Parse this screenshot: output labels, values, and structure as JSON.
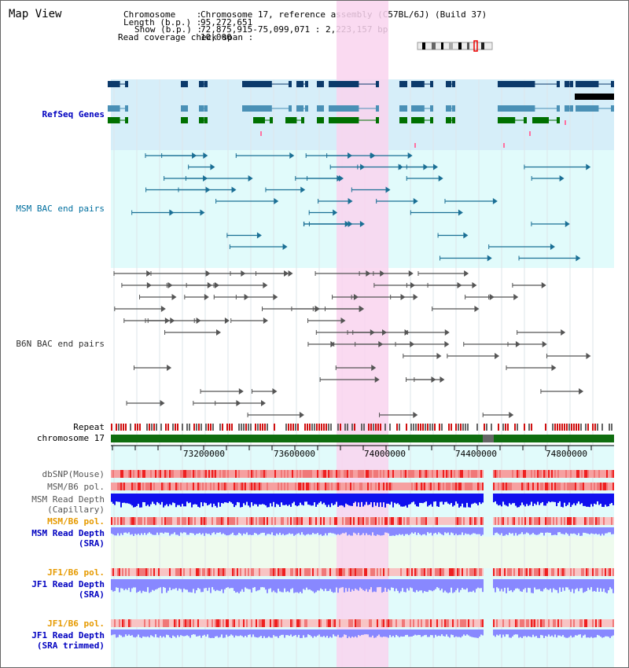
{
  "title": "Map View",
  "header": {
    "chromosome_key": "Chromosome    :",
    "chromosome_value": "Chromosome 17, reference assembly (C57BL/6J) (Build 37)",
    "length_key": "Length (b.p.) :",
    "length_value": "95,272,651",
    "show_key": "Show (b.p.) :",
    "show_value": "72,875,915-75,099,071 : 2,223,157 bp",
    "coverage_key": "Read coverage check span :",
    "coverage_value": "10,000"
  },
  "tracks": {
    "refseq": "RefSeq Genes",
    "msm_bac": "MSM BAC end pairs",
    "b6n_bac": "B6N BAC end pairs",
    "repeat": "Repeat",
    "chromosome": "chromosome 17",
    "dbsnp": "dbSNP(Mouse)",
    "msm_b6_pol_1": "MSM/B6 pol.",
    "msm_depth_cap_1": "MSM Read Depth",
    "msm_depth_cap_2": "(Capillary)",
    "msm_b6_pol_2": "MSM/B6 pol.",
    "msm_depth_sra_1": "MSM Read Depth",
    "msm_depth_sra_2": "(SRA)",
    "jf1_b6_pol_1": "JF1/B6 pol.",
    "jf1_depth_1": "JF1 Read Depth",
    "jf1_depth_2": "(SRA)",
    "jf1_b6_pol_2": "JF1/B6 pol.",
    "jf1_depth_trim_1": "JF1 Read Depth",
    "jf1_depth_trim_2": "(SRA trimmed)"
  },
  "axis": {
    "ticks": [
      "73200000",
      "73600000",
      "74000000",
      "74400000",
      "74800000"
    ]
  },
  "colors": {
    "highlight": "#f9d4ef",
    "refseq_bg": "#d6eef9",
    "msm_bg": "#e1fbfb",
    "gene_navy": "#0c3a6b",
    "gene_teal": "#4a90b6",
    "gene_green": "#007000",
    "bac_msm": "#1a6f95",
    "bac_b6n": "#555555",
    "chromosome": "#0f6d0f",
    "depth_cap": "#1010ee",
    "depth_sra": "#8888ff",
    "pol_red": "#ee2020"
  }
}
